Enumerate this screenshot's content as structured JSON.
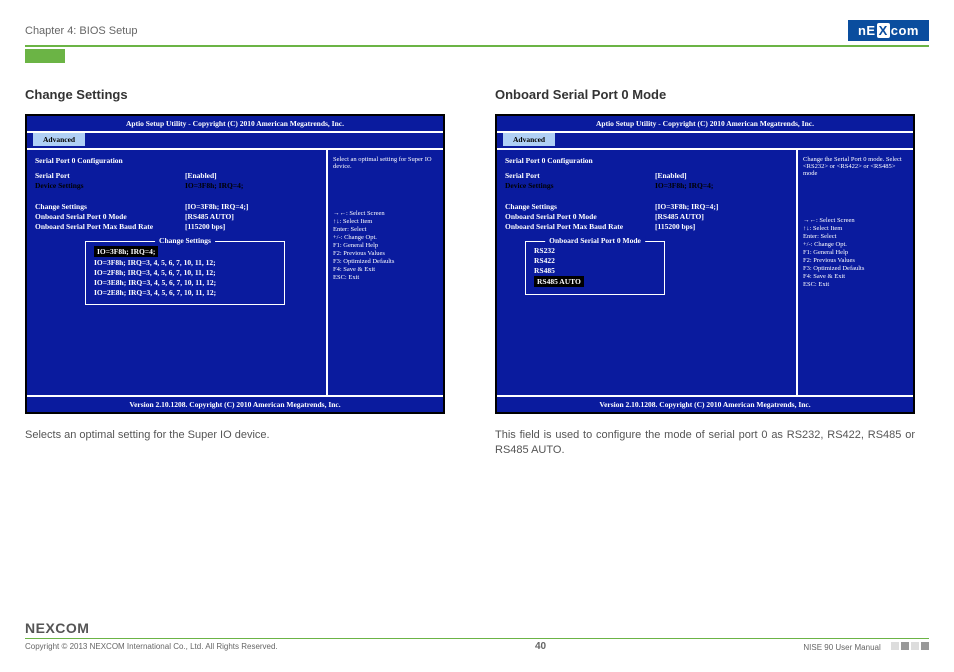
{
  "header": {
    "chapter": "Chapter 4: BIOS Setup",
    "logo_text": "NECOM",
    "logo_x": "X"
  },
  "left": {
    "title": "Change Settings",
    "bios": {
      "header": "Aptio Setup Utility - Copyright (C) 2010 American Megatrends, Inc.",
      "tab": "Advanced",
      "group_title": "Serial Port 0 Configuration",
      "rows": [
        {
          "k": "Serial Port",
          "v": "[Enabled]",
          "k_color": "#fff",
          "v_color": "#fff"
        },
        {
          "k": "Device Settings",
          "v": "IO=3F8h; IRQ=4;",
          "k_color": "#fff",
          "v_color": "#fff",
          "black_k": true,
          "black_v": true
        },
        {
          "k": "",
          "v": ""
        },
        {
          "k": "Change Settings",
          "v": "[IO=3F8h; IRQ=4;]",
          "k_color": "#fff",
          "v_color": "#fff"
        },
        {
          "k": "Onboard Serial Port 0 Mode",
          "v": "[RS485 AUTO]",
          "k_color": "#fff",
          "v_color": "#fff"
        },
        {
          "k": "Onboard Serial Port Max Baud Rate",
          "v": "[115200 bps]",
          "k_color": "#fff",
          "v_color": "#fff"
        }
      ],
      "submenu": {
        "title": "Change Settings",
        "options": [
          {
            "label": "IO=3F8h; IRQ=4;",
            "selected": true
          },
          {
            "label": "IO=3F8h; IRQ=3, 4, 5, 6, 7, 10, 11, 12;"
          },
          {
            "label": "IO=2F8h; IRQ=3, 4, 5, 6, 7, 10, 11, 12;"
          },
          {
            "label": "IO=3E8h; IRQ=3, 4, 5, 6, 7, 10, 11, 12;"
          },
          {
            "label": "IO=2E8h; IRQ=3, 4, 5, 6, 7, 10, 11, 12;"
          }
        ]
      },
      "help_text": "Select an optimal setting for Super IO device.",
      "keys": [
        "→←: Select Screen",
        "↑↓: Select Item",
        "Enter: Select",
        "+/-: Change Opt.",
        "F1: General Help",
        "F2: Previous Values",
        "F3: Optimized Defaults",
        "F4: Save & Exit",
        "ESC: Exit"
      ],
      "version": "Version 2.10.1208. Copyright (C) 2010 American Megatrends, Inc."
    },
    "body_text": "Selects an optimal setting for the Super IO device."
  },
  "right": {
    "title": "Onboard Serial Port 0 Mode",
    "bios": {
      "header": "Aptio Setup Utility - Copyright (C) 2010 American Megatrends, Inc.",
      "tab": "Advanced",
      "group_title": "Serial Port 0 Configuration",
      "rows": [
        {
          "k": "Serial Port",
          "v": "[Enabled]"
        },
        {
          "k": "Device Settings",
          "v": "IO=3F8h; IRQ=4;",
          "black_k": true,
          "black_v": true
        },
        {
          "k": "",
          "v": ""
        },
        {
          "k": "Change Settings",
          "v": "[IO=3F8h; IRQ=4;]"
        },
        {
          "k": "Onboard Serial Port 0 Mode",
          "v": "[RS485 AUTO]"
        },
        {
          "k": "Onboard Serial Port Max Baud Rate",
          "v": "[115200 bps]"
        }
      ],
      "submenu": {
        "title": "Onboard Serial Port 0 Mode",
        "options": [
          {
            "label": "RS232"
          },
          {
            "label": "RS422"
          },
          {
            "label": "RS485"
          },
          {
            "label": "RS485 AUTO",
            "selected": true
          }
        ]
      },
      "help_text": "Change the Serial Port 0 mode. Select <RS232> or <RS422> or <RS485> mode",
      "keys": [
        "→←: Select Screen",
        "↑↓: Select Item",
        "Enter: Select",
        "+/-: Change Opt.",
        "F1: General Help",
        "F2: Previous Values",
        "F3: Optimized Defaults",
        "F4: Save & Exit",
        "ESC: Exit"
      ],
      "version": "Version 2.10.1208. Copyright (C) 2010 American Megatrends, Inc."
    },
    "body_text": "This field is used to configure the mode of serial port 0 as RS232, RS422, RS485 or RS485 AUTO."
  },
  "footer": {
    "logo": "NEXCOM",
    "copyright": "Copyright © 2013 NEXCOM International Co., Ltd. All Rights Reserved.",
    "page": "40",
    "manual": "NISE 90 User Manual"
  }
}
